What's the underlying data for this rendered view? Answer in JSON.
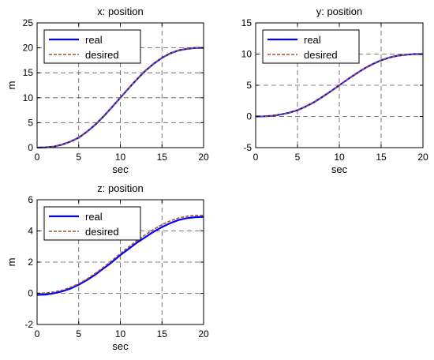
{
  "chart_data": [
    {
      "type": "line",
      "title": "x: position",
      "xlabel": "sec",
      "ylabel": "m",
      "xlim": [
        0,
        20
      ],
      "ylim": [
        0,
        25
      ],
      "xticks": [
        "0",
        "5",
        "10",
        "15",
        "20"
      ],
      "yticks": [
        "0",
        "5",
        "10",
        "15",
        "20",
        "25"
      ],
      "grid": true,
      "legend_position": "top-left",
      "x": [
        0,
        1,
        2,
        3,
        4,
        5,
        6,
        7,
        8,
        9,
        10,
        11,
        12,
        13,
        14,
        15,
        16,
        17,
        18,
        19,
        20
      ],
      "series": [
        {
          "name": "real",
          "color": "#0000ff",
          "style": "solid",
          "values": [
            0,
            0.05,
            0.2,
            0.6,
            1.2,
            2.0,
            3.2,
            4.6,
            6.3,
            8.1,
            10.0,
            11.9,
            13.7,
            15.4,
            16.8,
            18.0,
            18.9,
            19.5,
            19.8,
            20.0,
            20.0
          ]
        },
        {
          "name": "desired",
          "color": "#a0522d",
          "style": "dashed",
          "values": [
            0,
            0.05,
            0.2,
            0.6,
            1.2,
            2.0,
            3.2,
            4.6,
            6.3,
            8.1,
            10.0,
            11.9,
            13.7,
            15.4,
            16.8,
            18.0,
            18.9,
            19.5,
            19.8,
            20.0,
            20.0
          ]
        }
      ]
    },
    {
      "type": "line",
      "title": "y: position",
      "xlabel": "sec",
      "ylabel": "",
      "xlim": [
        0,
        20
      ],
      "ylim": [
        -5,
        15
      ],
      "xticks": [
        "0",
        "5",
        "10",
        "15",
        "20"
      ],
      "yticks": [
        "-5",
        "0",
        "5",
        "10",
        "15"
      ],
      "grid": true,
      "legend_position": "top-left",
      "x": [
        0,
        1,
        2,
        3,
        4,
        5,
        6,
        7,
        8,
        9,
        10,
        11,
        12,
        13,
        14,
        15,
        16,
        17,
        18,
        19,
        20
      ],
      "series": [
        {
          "name": "real",
          "color": "#0000ff",
          "style": "solid",
          "values": [
            0,
            0.03,
            0.1,
            0.3,
            0.6,
            1.0,
            1.6,
            2.3,
            3.15,
            4.05,
            5.0,
            5.95,
            6.85,
            7.7,
            8.4,
            9.0,
            9.45,
            9.75,
            9.9,
            10.0,
            10.0
          ]
        },
        {
          "name": "desired",
          "color": "#a0522d",
          "style": "dashed",
          "values": [
            0,
            0.03,
            0.1,
            0.3,
            0.6,
            1.0,
            1.6,
            2.3,
            3.15,
            4.05,
            5.0,
            5.95,
            6.85,
            7.7,
            8.4,
            9.0,
            9.45,
            9.75,
            9.9,
            10.0,
            10.0
          ]
        }
      ]
    },
    {
      "type": "line",
      "title": "z: position",
      "xlabel": "sec",
      "ylabel": "m",
      "xlim": [
        0,
        20
      ],
      "ylim": [
        -2,
        6
      ],
      "xticks": [
        "0",
        "5",
        "10",
        "15",
        "20"
      ],
      "yticks": [
        "-2",
        "0",
        "2",
        "4",
        "6"
      ],
      "grid": true,
      "legend_position": "top-left",
      "x": [
        0,
        1,
        2,
        3,
        4,
        5,
        6,
        7,
        8,
        9,
        10,
        11,
        12,
        13,
        14,
        15,
        16,
        17,
        18,
        19,
        20
      ],
      "series": [
        {
          "name": "real",
          "color": "#0000ff",
          "style": "solid",
          "values": [
            -0.1,
            -0.08,
            0.0,
            0.12,
            0.3,
            0.55,
            0.85,
            1.2,
            1.6,
            2.0,
            2.45,
            2.85,
            3.25,
            3.6,
            3.95,
            4.25,
            4.5,
            4.7,
            4.82,
            4.88,
            4.9
          ]
        },
        {
          "name": "desired",
          "color": "#a0522d",
          "style": "dashed",
          "values": [
            0,
            0.02,
            0.08,
            0.2,
            0.38,
            0.62,
            0.92,
            1.28,
            1.68,
            2.1,
            2.55,
            2.97,
            3.38,
            3.75,
            4.1,
            4.4,
            4.65,
            4.83,
            4.94,
            5.0,
            5.0
          ]
        }
      ]
    }
  ]
}
